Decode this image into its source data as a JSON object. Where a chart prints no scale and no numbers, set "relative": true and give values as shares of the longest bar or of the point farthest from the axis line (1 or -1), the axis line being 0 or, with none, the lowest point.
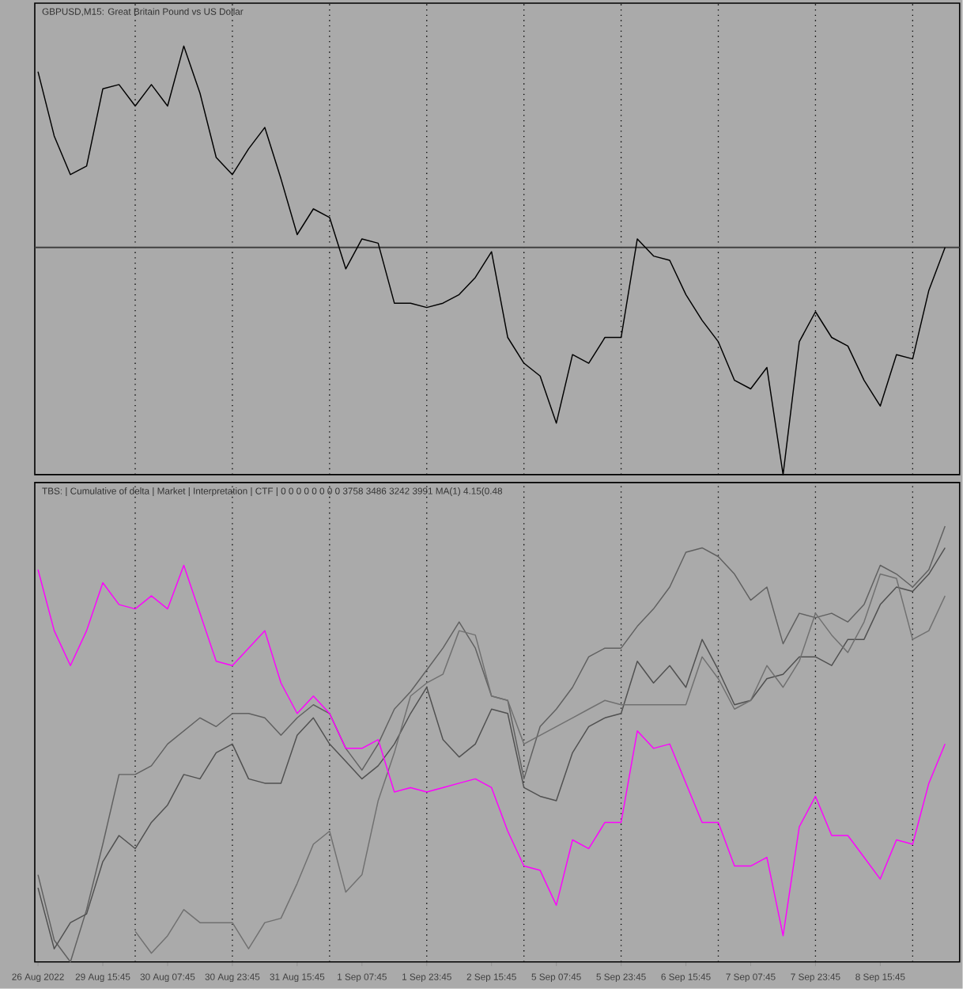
{
  "chart_data": [
    {
      "type": "line",
      "title": "GBPUSD,M15: Great Britain Pound vs US Dollar",
      "relative": true,
      "grid": "x",
      "categories": [
        null,
        null,
        null,
        null,
        null,
        null,
        null,
        null,
        null,
        null,
        null,
        null,
        null,
        null,
        null,
        null,
        null,
        null,
        null,
        null,
        null,
        null,
        null,
        null,
        null,
        null,
        null,
        null,
        null,
        null,
        null,
        null,
        null,
        null,
        null,
        null,
        null,
        null,
        null,
        null,
        null,
        null,
        null,
        null,
        null,
        null,
        null,
        null,
        null,
        null,
        null,
        null,
        null,
        null,
        null,
        null,
        null
      ],
      "series": [
        {
          "color": "#000000",
          "values": [
            0.94,
            0.79,
            0.7,
            0.72,
            0.9,
            0.91,
            0.86,
            0.91,
            0.86,
            1.0,
            0.89,
            0.74,
            0.7,
            0.76,
            0.81,
            0.69,
            0.56,
            0.62,
            0.6,
            0.48,
            0.55,
            0.54,
            0.4,
            0.4,
            0.39,
            0.4,
            0.42,
            0.46,
            0.52,
            0.32,
            0.26,
            0.23,
            0.12,
            0.28,
            0.26,
            0.32,
            0.32,
            0.55,
            0.51,
            0.5,
            0.42,
            0.36,
            0.31,
            0.22,
            0.2,
            0.25,
            0,
            0.31,
            0.38,
            0.32,
            0.3,
            0.22,
            0.16,
            0.28,
            0.27,
            0.43,
            0.53
          ]
        }
      ],
      "ref_lines": [
        {
          "axis": "y",
          "value": 0.53,
          "color": "#404040",
          "line_style": "solid"
        }
      ]
    },
    {
      "type": "line",
      "title": "TBS: | Cumulative of delta | Market | Interpretation | CTF | 0 0 0 0 0 0 0 0 3758 3486 3242 3991 MA(1) 4.15(0.48",
      "relative": true,
      "grid": "x",
      "categories": [
        "26 Aug 2022",
        null,
        null,
        null,
        "29 Aug 15:45",
        null,
        null,
        null,
        "30 Aug 07:45",
        null,
        null,
        null,
        "30 Aug 23:45",
        null,
        null,
        null,
        "31 Aug 15:45",
        null,
        null,
        null,
        "1 Sep 07:45",
        null,
        null,
        null,
        "1 Sep 23:45",
        null,
        null,
        null,
        "2 Sep 15:45",
        null,
        null,
        null,
        "5 Sep 07:45",
        null,
        null,
        null,
        "5 Sep 23:45",
        null,
        null,
        null,
        "6 Sep 15:45",
        null,
        null,
        null,
        "7 Sep 07:45",
        null,
        null,
        null,
        "7 Sep 23:45",
        null,
        null,
        null,
        "8 Sep 15:45",
        null,
        null,
        null,
        null
      ],
      "series": [
        {
          "color": "#606060",
          "values": [
            0.2,
            0.05,
            0,
            0.12,
            0.27,
            0.43,
            0.43,
            0.45,
            0.5,
            0.53,
            0.56,
            0.54,
            0.57,
            0.57,
            0.56,
            0.52,
            0.56,
            0.59,
            0.57,
            0.49,
            0.44,
            0.5,
            0.58,
            0.62,
            0.67,
            0.72,
            0.78,
            0.72,
            0.61,
            0.6,
            0.42,
            0.54,
            0.58,
            0.63,
            0.7,
            0.72,
            0.72,
            0.77,
            0.81,
            0.86,
            0.94,
            0.95,
            0.93,
            0.89,
            0.83,
            0.86,
            0.73,
            0.8,
            0.79,
            0.8,
            0.78,
            0.82,
            0.91,
            0.89,
            0.86,
            0.9,
            1.0
          ]
        },
        {
          "color": "#505050",
          "values": [
            0.17,
            0.03,
            0.09,
            0.11,
            0.23,
            0.29,
            0.26,
            0.32,
            0.36,
            0.43,
            0.42,
            0.48,
            0.5,
            0.42,
            0.41,
            0.41,
            0.52,
            0.56,
            0.5,
            0.46,
            0.42,
            0.45,
            0.5,
            0.57,
            0.63,
            0.51,
            0.47,
            0.5,
            0.58,
            0.57,
            0.4,
            0.38,
            0.37,
            0.48,
            0.54,
            0.56,
            0.57,
            0.69,
            0.64,
            0.68,
            0.63,
            0.74,
            0.67,
            0.59,
            0.6,
            0.65,
            0.66,
            0.7,
            0.7,
            0.68,
            0.74,
            0.74,
            0.82,
            0.86,
            0.85,
            0.89,
            0.95
          ]
        },
        {
          "color": "#707070",
          "values": [
            null,
            null,
            null,
            null,
            null,
            null,
            0.07,
            0.02,
            0.06,
            0.12,
            0.09,
            0.09,
            0.09,
            0.03,
            0.09,
            0.1,
            0.18,
            0.27,
            0.3,
            0.16,
            0.2,
            0.37,
            0.48,
            0.61,
            0.64,
            0.66,
            0.76,
            0.75,
            0.61,
            0.6,
            0.5,
            0.52,
            0.54,
            0.56,
            0.58,
            0.6,
            0.59,
            0.59,
            0.59,
            0.59,
            0.59,
            0.7,
            0.65,
            0.58,
            0.6,
            0.68,
            0.63,
            0.69,
            0.8,
            0.75,
            0.71,
            0.78,
            0.89,
            0.88,
            0.74,
            0.76,
            0.84
          ]
        },
        {
          "color": "#ff00ff",
          "values": [
            0.9,
            0.76,
            0.68,
            0.76,
            0.87,
            0.82,
            0.81,
            0.84,
            0.81,
            0.91,
            0.8,
            0.69,
            0.68,
            0.72,
            0.76,
            0.64,
            0.57,
            0.61,
            0.57,
            0.49,
            0.49,
            0.51,
            0.39,
            0.4,
            0.39,
            0.4,
            0.41,
            0.42,
            0.4,
            0.3,
            0.22,
            0.21,
            0.13,
            0.28,
            0.26,
            0.32,
            0.32,
            0.53,
            0.49,
            0.5,
            0.41,
            0.32,
            0.32,
            0.22,
            0.22,
            0.24,
            0.06,
            0.31,
            0.38,
            0.29,
            0.29,
            0.24,
            0.19,
            0.28,
            0.27,
            0.41,
            0.5
          ]
        }
      ]
    }
  ]
}
